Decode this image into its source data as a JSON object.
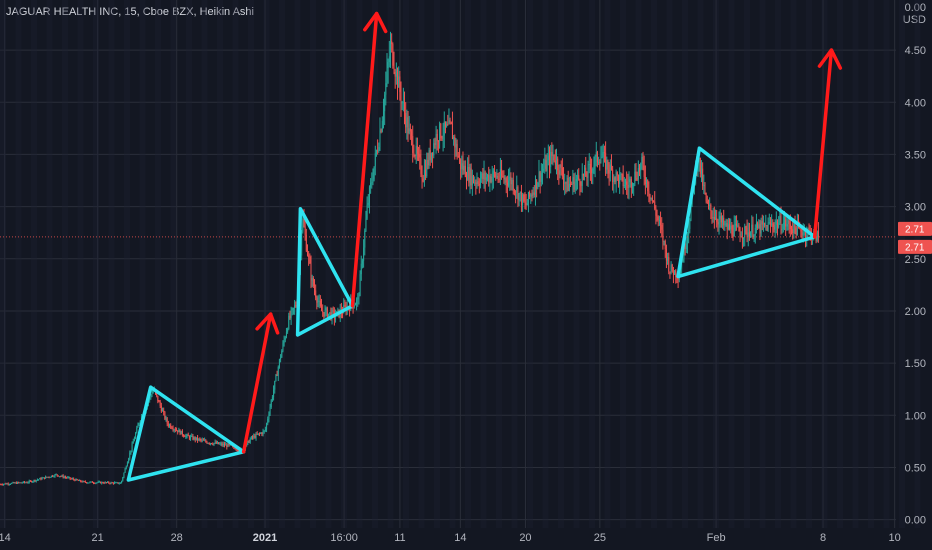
{
  "header": {
    "title": "JAGUAR HEALTH INC, 15, Cboe BZX, Heikin Ashi",
    "unit_line1": "0.00",
    "unit_line2": "USD"
  },
  "colors": {
    "background": "#131722",
    "grid": "#2a2e39",
    "up": "#26a69a",
    "down": "#ef5350",
    "triangle": "#2fe3f0",
    "arrow": "#ff1a1a",
    "price_tag": "#ef5350",
    "axis_text": "#b2b5be"
  },
  "chart_data": {
    "type": "candlestick",
    "title": "JAGUAR HEALTH INC, 15, Cboe BZX, Heikin Ashi",
    "y_axis": {
      "side": "right",
      "unit": "USD",
      "range": [
        -0.08,
        4.98
      ],
      "ticks": [
        "0.00",
        "0.50",
        "1.00",
        "1.50",
        "2.00",
        "2.50",
        "3.00",
        "3.50",
        "4.00",
        "4.50"
      ]
    },
    "x_axis": {
      "ticks": [
        {
          "label": "14",
          "bold": false
        },
        {
          "label": "21",
          "bold": false
        },
        {
          "label": "28",
          "bold": false
        },
        {
          "label": "2021",
          "bold": true
        },
        {
          "label": "16:00",
          "bold": false
        },
        {
          "label": "11",
          "bold": false
        },
        {
          "label": "14",
          "bold": false
        },
        {
          "label": "20",
          "bold": false
        },
        {
          "label": "25",
          "bold": false
        },
        {
          "label": "Feb",
          "bold": false
        },
        {
          "label": "8",
          "bold": false
        },
        {
          "label": "10",
          "bold": false
        }
      ]
    },
    "last_price": {
      "value": 2.71,
      "labels": [
        "2.71",
        "2.71"
      ]
    },
    "price_path": [
      {
        "t": 0,
        "p": 0.34
      },
      {
        "t": 0.03,
        "p": 0.36
      },
      {
        "t": 0.06,
        "p": 0.43
      },
      {
        "t": 0.09,
        "p": 0.36
      },
      {
        "t": 0.13,
        "p": 0.35
      },
      {
        "t": 0.135,
        "p": 0.5
      },
      {
        "t": 0.15,
        "p": 0.95
      },
      {
        "t": 0.165,
        "p": 1.25
      },
      {
        "t": 0.18,
        "p": 0.92
      },
      {
        "t": 0.2,
        "p": 0.8
      },
      {
        "t": 0.22,
        "p": 0.75
      },
      {
        "t": 0.25,
        "p": 0.7
      },
      {
        "t": 0.26,
        "p": 0.66
      },
      {
        "t": 0.27,
        "p": 0.78
      },
      {
        "t": 0.285,
        "p": 0.85
      },
      {
        "t": 0.3,
        "p": 1.5
      },
      {
        "t": 0.31,
        "p": 1.9
      },
      {
        "t": 0.32,
        "p": 2.1
      },
      {
        "t": 0.325,
        "p": 2.9
      },
      {
        "t": 0.335,
        "p": 2.3
      },
      {
        "t": 0.345,
        "p": 2.0
      },
      {
        "t": 0.36,
        "p": 1.95
      },
      {
        "t": 0.375,
        "p": 2.05
      },
      {
        "t": 0.385,
        "p": 2.1
      },
      {
        "t": 0.395,
        "p": 3.0
      },
      {
        "t": 0.41,
        "p": 3.8
      },
      {
        "t": 0.42,
        "p": 4.55
      },
      {
        "t": 0.43,
        "p": 4.1
      },
      {
        "t": 0.44,
        "p": 3.7
      },
      {
        "t": 0.455,
        "p": 3.3
      },
      {
        "t": 0.47,
        "p": 3.7
      },
      {
        "t": 0.485,
        "p": 3.75
      },
      {
        "t": 0.495,
        "p": 3.4
      },
      {
        "t": 0.51,
        "p": 3.25
      },
      {
        "t": 0.53,
        "p": 3.3
      },
      {
        "t": 0.55,
        "p": 3.25
      },
      {
        "t": 0.565,
        "p": 3.0
      },
      {
        "t": 0.58,
        "p": 3.3
      },
      {
        "t": 0.595,
        "p": 3.5
      },
      {
        "t": 0.61,
        "p": 3.2
      },
      {
        "t": 0.63,
        "p": 3.3
      },
      {
        "t": 0.645,
        "p": 3.5
      },
      {
        "t": 0.66,
        "p": 3.3
      },
      {
        "t": 0.675,
        "p": 3.2
      },
      {
        "t": 0.69,
        "p": 3.4
      },
      {
        "t": 0.7,
        "p": 3.1
      },
      {
        "t": 0.71,
        "p": 2.8
      },
      {
        "t": 0.72,
        "p": 2.4
      },
      {
        "t": 0.73,
        "p": 2.35
      },
      {
        "t": 0.74,
        "p": 2.8
      },
      {
        "t": 0.75,
        "p": 3.5
      },
      {
        "t": 0.76,
        "p": 3.0
      },
      {
        "t": 0.78,
        "p": 2.8
      },
      {
        "t": 0.8,
        "p": 2.75
      },
      {
        "t": 0.82,
        "p": 2.8
      },
      {
        "t": 0.84,
        "p": 2.85
      },
      {
        "t": 0.86,
        "p": 2.78
      },
      {
        "t": 0.875,
        "p": 2.73
      },
      {
        "t": 0.88,
        "p": 2.71
      }
    ],
    "annotations": {
      "triangles": [
        {
          "name": "triangle-1",
          "vertices": [
            {
              "t": 0.138,
              "p": 0.38
            },
            {
              "t": 0.162,
              "p": 1.27
            },
            {
              "t": 0.262,
              "p": 0.65
            }
          ]
        },
        {
          "name": "triangle-2",
          "vertices": [
            {
              "t": 0.32,
              "p": 1.77
            },
            {
              "t": 0.323,
              "p": 2.98
            },
            {
              "t": 0.379,
              "p": 2.05
            }
          ]
        },
        {
          "name": "triangle-3",
          "vertices": [
            {
              "t": 0.729,
              "p": 2.33
            },
            {
              "t": 0.752,
              "p": 3.56
            },
            {
              "t": 0.876,
              "p": 2.71
            }
          ]
        }
      ],
      "arrows": [
        {
          "name": "arrow-1",
          "from": {
            "t": 0.262,
            "p": 0.65
          },
          "to": {
            "t": 0.291,
            "p": 1.97
          }
        },
        {
          "name": "arrow-2",
          "from": {
            "t": 0.379,
            "p": 2.05
          },
          "to": {
            "t": 0.405,
            "p": 4.85
          }
        },
        {
          "name": "arrow-3",
          "from": {
            "t": 0.876,
            "p": 2.71
          },
          "to": {
            "t": 0.894,
            "p": 4.5
          }
        }
      ]
    },
    "grid": true
  }
}
